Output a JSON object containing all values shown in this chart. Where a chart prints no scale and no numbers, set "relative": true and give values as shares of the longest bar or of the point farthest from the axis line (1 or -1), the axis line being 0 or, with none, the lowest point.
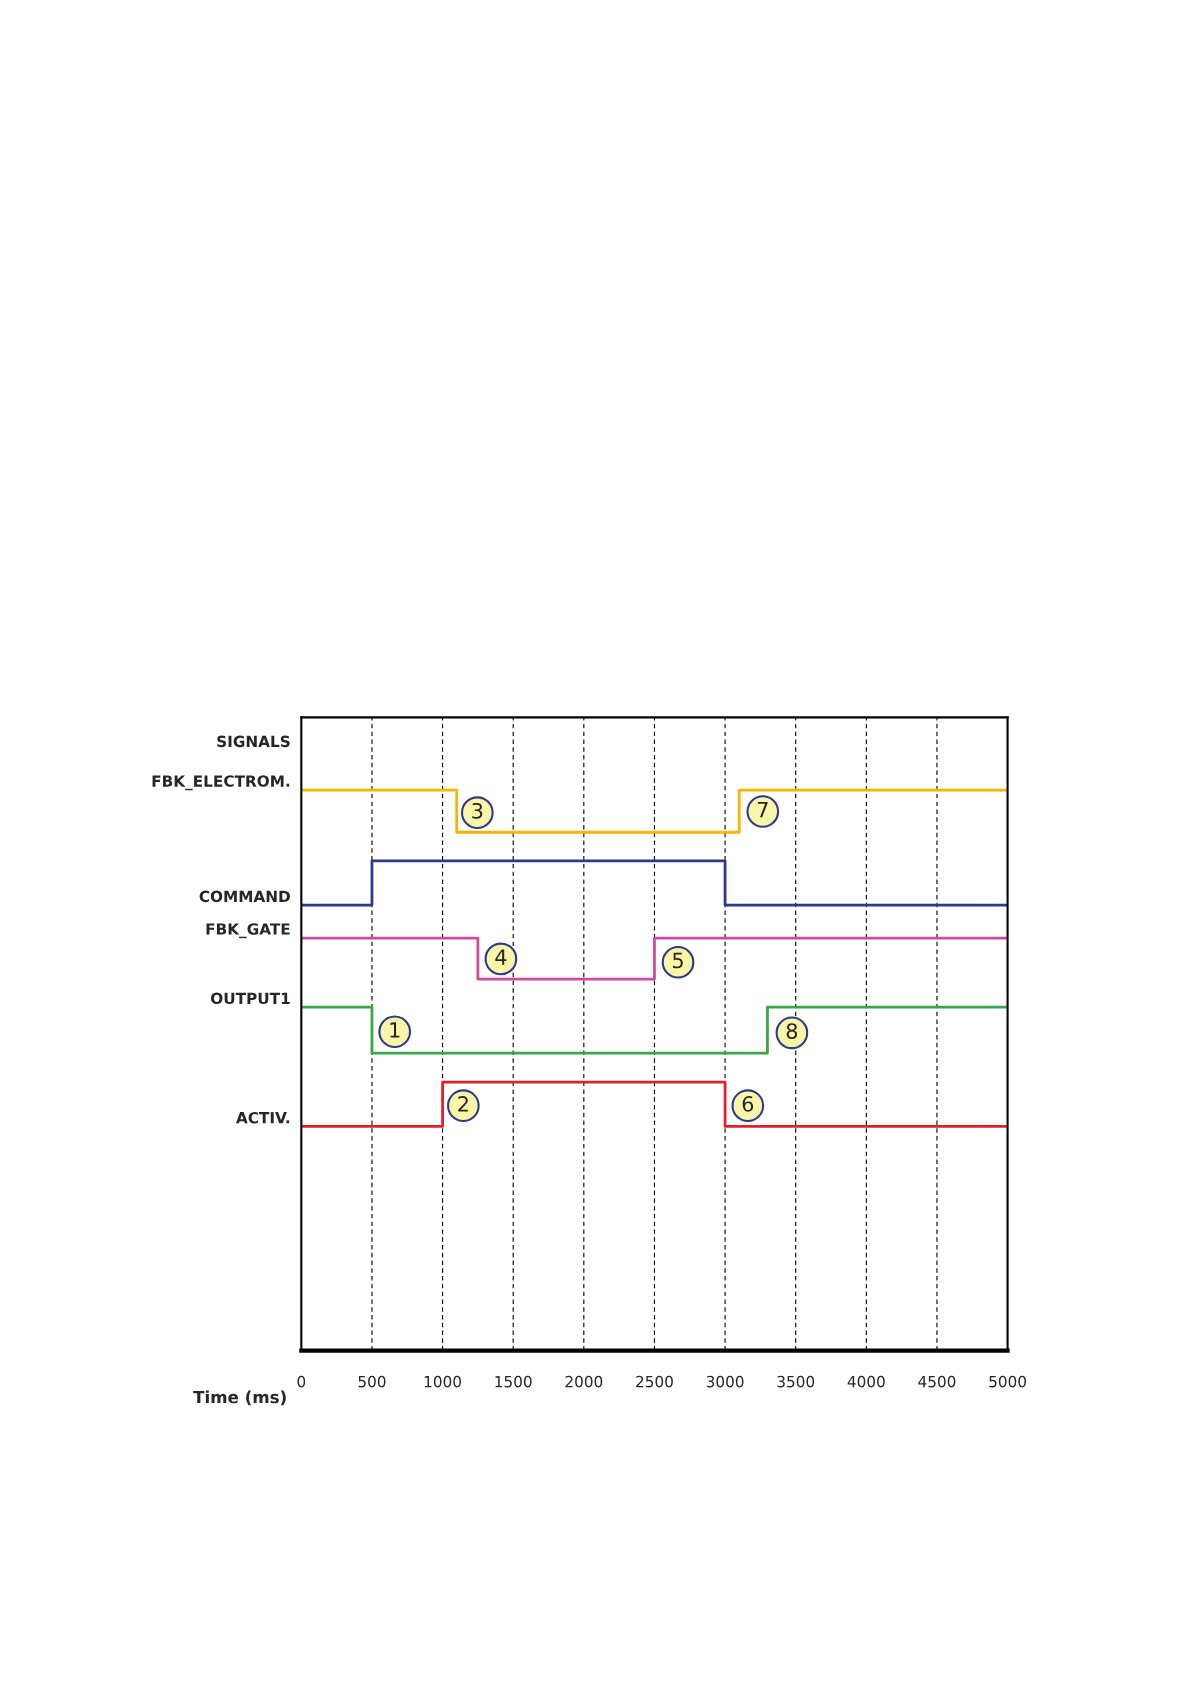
{
  "chart_data": {
    "type": "step",
    "relative": true,
    "xlabel": "Time (ms)",
    "ylabel": "SIGNALS",
    "xlim": [
      0,
      5000
    ],
    "xticks": [
      0,
      500,
      1000,
      1500,
      2000,
      2500,
      3000,
      3500,
      4000,
      4500,
      5000
    ],
    "grid": "x",
    "line_style": "solid",
    "series": [
      {
        "name": "FBK_ELECTROM.",
        "color": "#f7b500",
        "x": [
          0,
          1100,
          3100,
          5000
        ],
        "values": [
          1,
          0.925,
          1,
          1
        ]
      },
      {
        "name": "COMMAND",
        "color": "#2b3a8c",
        "x": [
          0,
          500,
          3000,
          5000
        ],
        "values": [
          0.795,
          0.874,
          0.795,
          0.795
        ]
      },
      {
        "name": "FBK_GATE",
        "color": "#d14a9c",
        "x": [
          0,
          1250,
          2500,
          5000
        ],
        "values": [
          0.736,
          0.663,
          0.736,
          0.736
        ]
      },
      {
        "name": "OUTPUT1",
        "color": "#3aa64a",
        "x": [
          0,
          500,
          3300,
          5000
        ],
        "values": [
          0.613,
          0.531,
          0.613,
          0.613
        ]
      },
      {
        "name": "ACTIV.",
        "color": "#e0202a",
        "x": [
          0,
          1000,
          3000,
          5000
        ],
        "values": [
          0.4,
          0.479,
          0.4,
          0.4
        ]
      }
    ],
    "annotations": [
      {
        "text": "1",
        "x": 661,
        "y": 0.569
      },
      {
        "text": "2",
        "x": 1147,
        "y": 0.437
      },
      {
        "text": "3",
        "x": 1246,
        "y": 0.96
      },
      {
        "text": "4",
        "x": 1413,
        "y": 0.699
      },
      {
        "text": "5",
        "x": 2667,
        "y": 0.693
      },
      {
        "text": "6",
        "x": 3161,
        "y": 0.437
      },
      {
        "text": "7",
        "x": 3267,
        "y": 0.962
      },
      {
        "text": "8",
        "x": 3473,
        "y": 0.567
      }
    ]
  }
}
